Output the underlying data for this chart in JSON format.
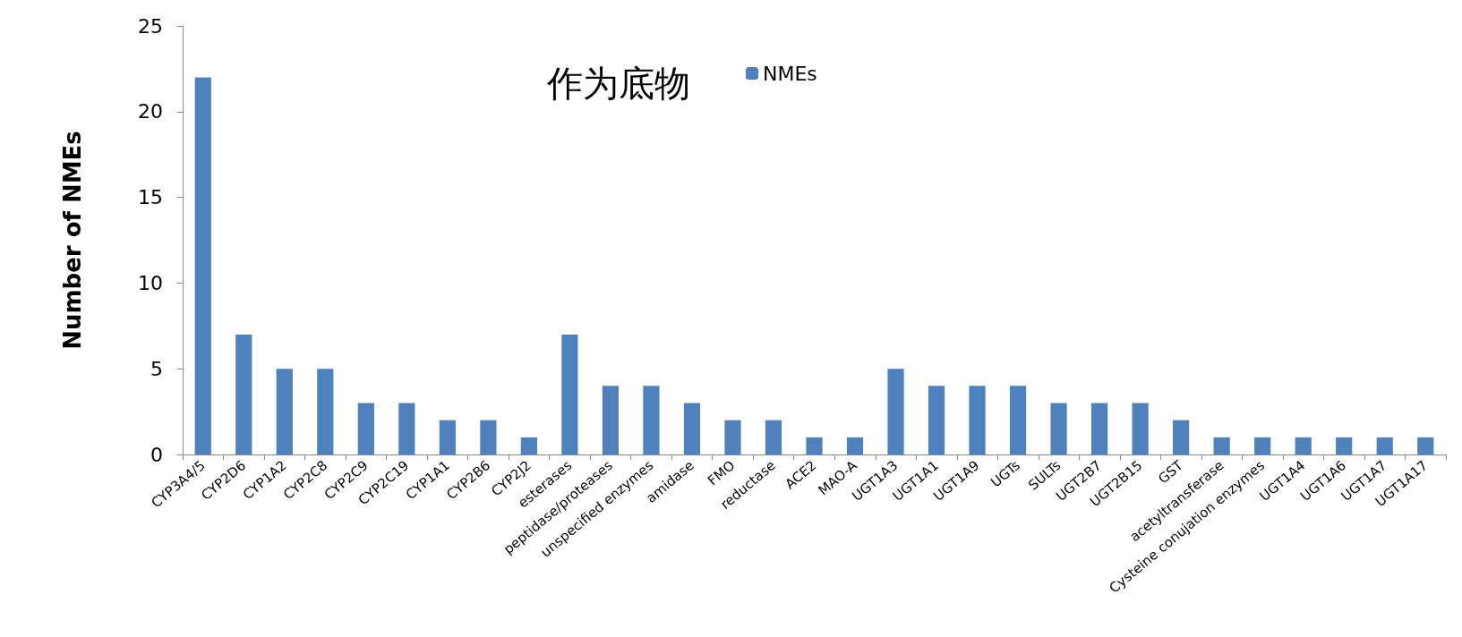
{
  "chart_data": {
    "type": "bar",
    "title": "作为底物",
    "ylabel": "Number of NMEs",
    "categories": [
      "CYP3A4/5",
      "CYP2D6",
      "CYP1A2",
      "CYP2C8",
      "CYP2C9",
      "CYP2C19",
      "CYP1A1",
      "CYP2B6",
      "CYP2J2",
      "esterases",
      "peptidase/proteases",
      "unspecified enzymes",
      "amidase",
      "FMO",
      "reductase",
      "ACE2",
      "MAO-A",
      "UGT1A3",
      "UGT1A1",
      "UGT1A9",
      "UGTs",
      "SULTs",
      "UGT2B7",
      "UGT2B15",
      "GST",
      "acetyltransferase",
      "Cysteine conujation enzymes",
      "UGT1A4",
      "UGT1A6",
      "UGT1A7",
      "UGT1A17"
    ],
    "series": [
      {
        "name": "NMEs",
        "color": "#4f81bd",
        "values": [
          22,
          7,
          5,
          5,
          3,
          3,
          2,
          2,
          1,
          7,
          4,
          4,
          3,
          2,
          2,
          1,
          1,
          5,
          4,
          4,
          4,
          3,
          3,
          3,
          2,
          1,
          1,
          1,
          1,
          1,
          1
        ]
      }
    ],
    "ylim": [
      0,
      25
    ],
    "yticks": [
      0,
      5,
      10,
      15,
      20,
      25
    ],
    "grid": false,
    "legend": "top"
  }
}
